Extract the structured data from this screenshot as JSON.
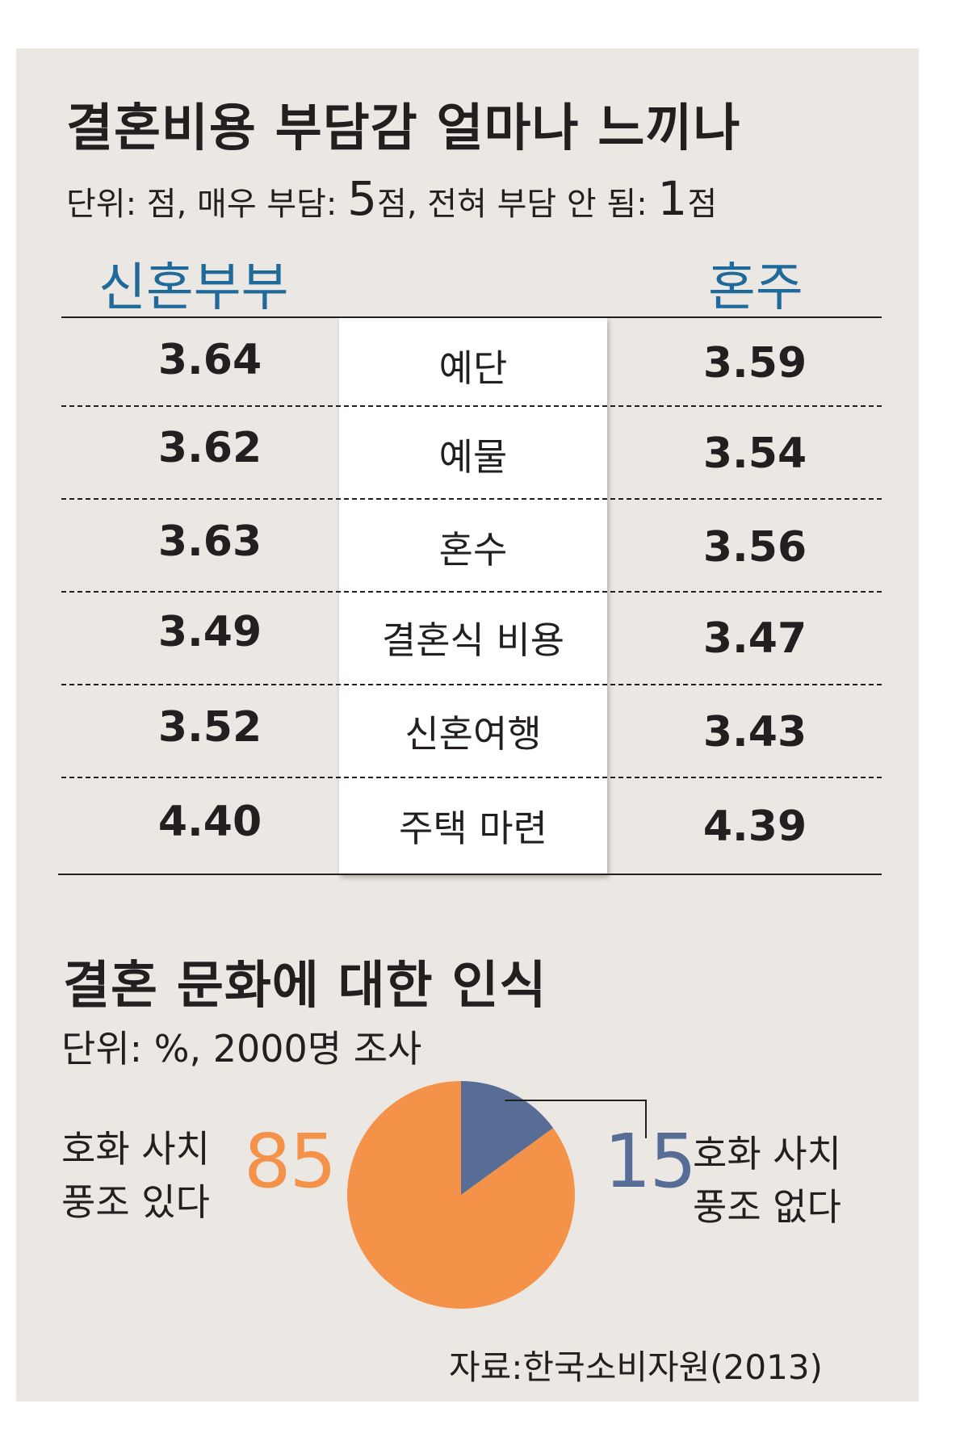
{
  "table": {
    "title": "결혼비용 부담감 얼마나 느끼나",
    "unit_text_a": "단위: 점, 매우 부담: ",
    "unit_num_a": "5",
    "unit_text_b": "점, 전혀 부담 안 됨: ",
    "unit_num_b": "1",
    "unit_text_c": "점",
    "left_header": "신혼부부",
    "right_header": "혼주",
    "header_color": "#1f6a9a",
    "rows": [
      {
        "category": "예단",
        "left": "3.64",
        "right": "3.59"
      },
      {
        "category": "예물",
        "left": "3.62",
        "right": "3.54"
      },
      {
        "category": "혼수",
        "left": "3.63",
        "right": "3.56"
      },
      {
        "category": "결혼식 비용",
        "left": "3.49",
        "right": "3.47"
      },
      {
        "category": "신혼여행",
        "left": "3.52",
        "right": "3.43"
      },
      {
        "category": "주택 마련",
        "left": "4.40",
        "right": "4.39"
      }
    ]
  },
  "pie": {
    "title": "결혼 문화에 대한 인식",
    "unit": "단위: %, 2000명 조사",
    "left_label_line1": "호화 사치",
    "left_label_line2": "풍조 있다",
    "left_value": "85",
    "right_label_line1": "호화 사치",
    "right_label_line2": "풍조 없다",
    "right_value": "15",
    "orange": "#f5924a",
    "blue": "#576d96"
  },
  "source": "자료:한국소비자원(2013)",
  "chart_data": [
    {
      "type": "table",
      "title": "결혼비용 부담감 얼마나 느끼나",
      "subtitle": "단위: 점, 매우 부담: 5점, 전혀 부담 안 됨: 1점",
      "categories": [
        "예단",
        "예물",
        "혼수",
        "결혼식 비용",
        "신혼여행",
        "주택 마련"
      ],
      "series": [
        {
          "name": "신혼부부",
          "values": [
            3.64,
            3.62,
            3.63,
            3.49,
            3.52,
            4.4
          ]
        },
        {
          "name": "혼주",
          "values": [
            3.59,
            3.54,
            3.56,
            3.47,
            3.43,
            4.39
          ]
        }
      ]
    },
    {
      "type": "pie",
      "title": "결혼 문화에 대한 인식",
      "subtitle": "단위: %, 2000명 조사",
      "categories": [
        "호화 사치 풍조 있다",
        "호화 사치 풍조 없다"
      ],
      "values": [
        85,
        15
      ],
      "colors": [
        "#f5924a",
        "#576d96"
      ]
    }
  ]
}
